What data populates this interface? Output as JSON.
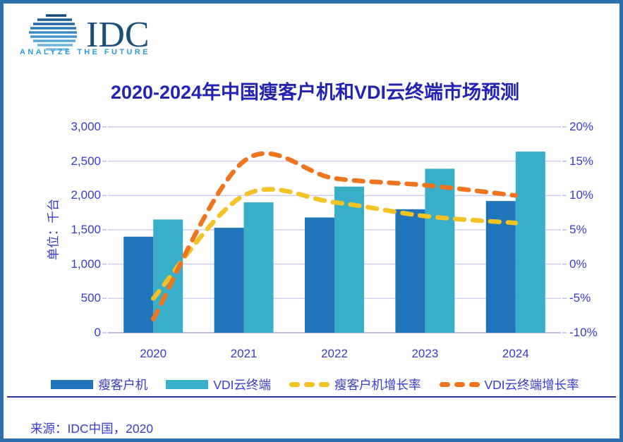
{
  "brand": {
    "name": "IDC",
    "tagline": "ANALYZE THE FUTURE"
  },
  "title": "2020-2024年中国瘦客户机和VDI云终端市场预测",
  "source": "来源：IDC中国，2020",
  "colors": {
    "frame": "#2b70ad",
    "title": "#2323b3",
    "label": "#3a3acc",
    "grid": "#cdcef2",
    "axis": "#b9bbe8",
    "divider": "#2b3a96",
    "bar_thin_client": "#2075ba",
    "bar_vdi": "#38aec8",
    "line_thin_client_growth": "#f3c224",
    "line_vdi_growth": "#ee7420",
    "logo_navy": "#1c4e79",
    "logo_light_blue": "#2f9bd4"
  },
  "chart_data": {
    "type": "bar",
    "subtype": "combo bar + dashed smoothed lines, dual axis",
    "categories": [
      "2020",
      "2021",
      "2022",
      "2023",
      "2024"
    ],
    "series": [
      {
        "name": "瘦客户机",
        "type": "bar",
        "axis": "left",
        "color": "#2075ba",
        "values": [
          1400,
          1530,
          1680,
          1800,
          1920
        ]
      },
      {
        "name": "VDI云终端",
        "type": "bar",
        "axis": "left",
        "color": "#38aec8",
        "values": [
          1650,
          1900,
          2130,
          2390,
          2640
        ]
      },
      {
        "name": "瘦客户机增长率",
        "type": "line",
        "axis": "right",
        "style": "dashed",
        "color": "#f3c224",
        "values": [
          -5,
          10,
          9,
          7,
          6
        ]
      },
      {
        "name": "VDI云终端增长率",
        "type": "line",
        "axis": "right",
        "style": "dashed",
        "color": "#ee7420",
        "values": [
          -8,
          15,
          12.5,
          11.5,
          10
        ]
      }
    ],
    "left_axis": {
      "title": "单位：千台",
      "min": 0,
      "max": 3000,
      "step": 500,
      "tick_labels": [
        "0",
        "500",
        "1,000",
        "1,500",
        "2,000",
        "2,500",
        "3,000"
      ]
    },
    "right_axis": {
      "min": -10,
      "max": 20,
      "step": 5,
      "unit": "%",
      "tick_labels": [
        "-10%",
        "-5%",
        "0%",
        "5%",
        "10%",
        "15%",
        "20%"
      ]
    },
    "grid": true,
    "legend_position": "bottom"
  }
}
